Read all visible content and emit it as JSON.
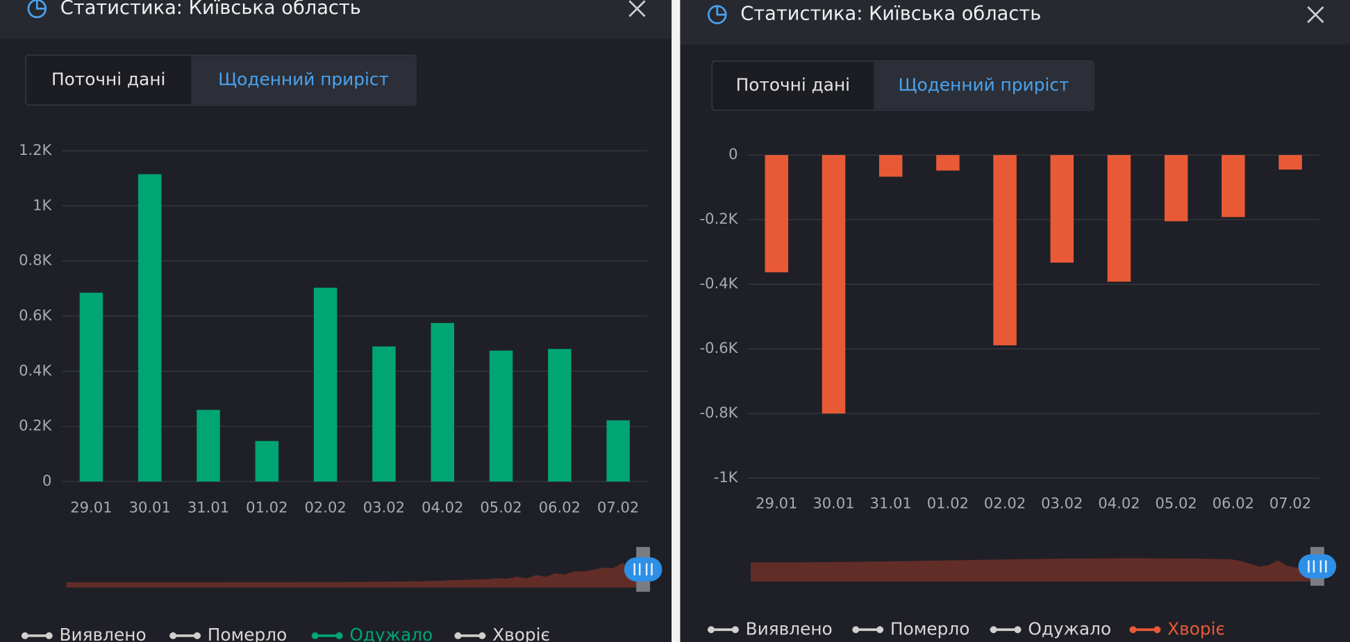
{
  "chart_data": [
    {
      "type": "bar",
      "title": "Статистика: Київська область",
      "tabs": [
        "Поточні дані",
        "Щоденний приріст"
      ],
      "active_tab": 1,
      "categories": [
        "29.01",
        "30.01",
        "31.01",
        "01.02",
        "02.02",
        "03.02",
        "04.02",
        "05.02",
        "06.02",
        "07.02"
      ],
      "values": [
        685,
        1115,
        260,
        147,
        703,
        490,
        575,
        475,
        481,
        222
      ],
      "color": "#00a572",
      "ylim": [
        0,
        1200
      ],
      "yticks": [
        0,
        {
          "value": 200,
          "label": "0.2K"
        },
        {
          "value": 400,
          "label": "0.4K"
        },
        {
          "value": 600,
          "label": "0.6K"
        },
        {
          "value": 800,
          "label": "0.8K"
        },
        {
          "value": 1000,
          "label": "1K"
        },
        {
          "value": 1200,
          "label": "1.2K"
        }
      ],
      "grid": true,
      "legend_items": [
        "Виявлено",
        "Померло",
        "Одужало",
        "Хворіє"
      ],
      "active_series": 2
    },
    {
      "type": "bar",
      "title": "Статистика: Київська область",
      "tabs": [
        "Поточні дані",
        "Щоденний приріст"
      ],
      "active_tab": 1,
      "categories": [
        "29.01",
        "30.01",
        "31.01",
        "01.02",
        "02.02",
        "03.02",
        "04.02",
        "05.02",
        "06.02",
        "07.02"
      ],
      "values": [
        -363,
        -800,
        -67,
        -48,
        -589,
        -333,
        -392,
        -205,
        -192,
        -45
      ],
      "color": "#e85a36",
      "ylim": [
        -1000,
        0
      ],
      "yticks": [
        0,
        {
          "value": -200,
          "label": "-0.2K"
        },
        {
          "value": -400,
          "label": "-0.4K"
        },
        {
          "value": -600,
          "label": "-0.6K"
        },
        {
          "value": -800,
          "label": "-0.8K"
        },
        {
          "value": -1000,
          "label": "-1K"
        }
      ],
      "grid": true,
      "legend_items": [
        "Виявлено",
        "Померло",
        "Одужало",
        "Хворіє"
      ],
      "active_series": 3
    }
  ]
}
